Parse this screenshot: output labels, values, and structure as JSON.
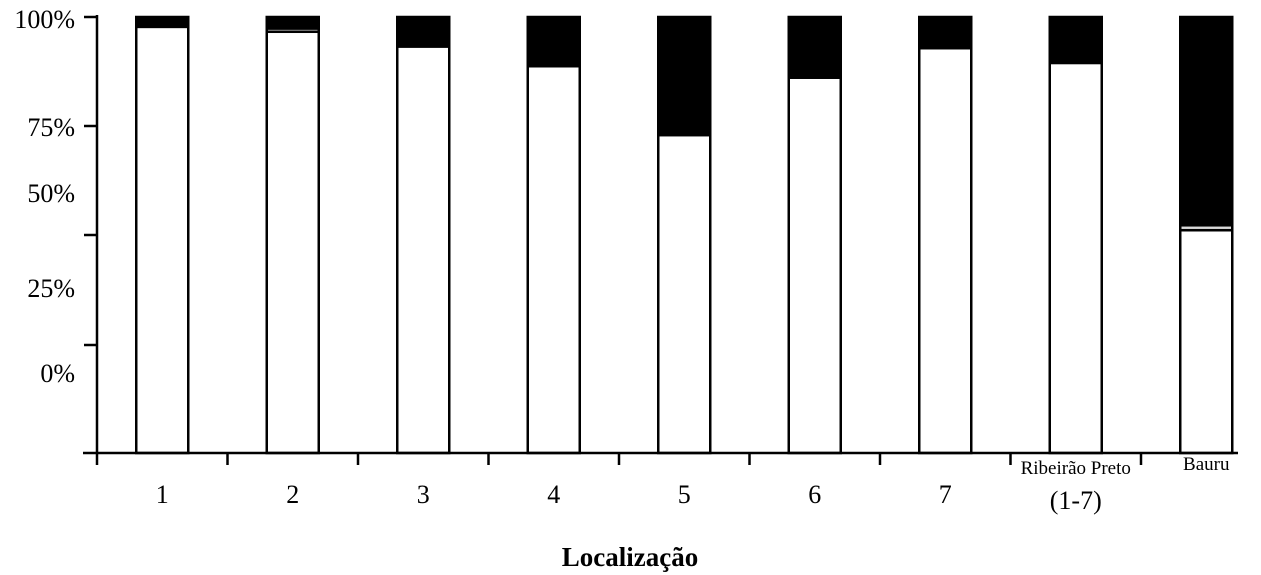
{
  "chart_data": {
    "type": "bar",
    "stacked": true,
    "percent": true,
    "categories": [
      "1",
      "2",
      "3",
      "4",
      "5",
      "6",
      "7",
      "Ribeirão Preto",
      "Bauru"
    ],
    "category_sublabels": [
      "",
      "",
      "",
      "",
      "",
      "",
      "",
      "(1-7)",
      ""
    ],
    "series": [
      {
        "color": "#ffffff",
        "values": [
          97,
          95.5,
          91,
          85,
          64,
          81.5,
          90.5,
          86,
          35
        ]
      },
      {
        "color": "#d9d9d9",
        "values": [
          0.5,
          1,
          0.5,
          0.5,
          0.5,
          0.5,
          0.5,
          0.5,
          1.5
        ]
      },
      {
        "color": "#000000",
        "values": [
          2.5,
          3.5,
          8.5,
          14.5,
          35.5,
          18,
          9,
          13.5,
          63.5
        ]
      }
    ],
    "yticks": [
      "100%",
      "75%",
      "50%",
      "25%",
      "0%"
    ],
    "ylim": [
      0,
      100
    ],
    "xlabel": "Localização",
    "ylabel": "",
    "title": ""
  }
}
